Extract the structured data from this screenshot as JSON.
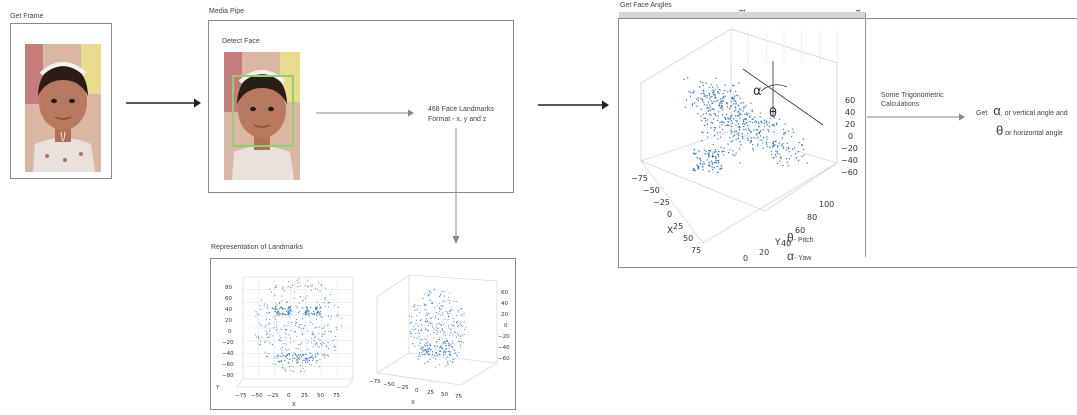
{
  "frame": {
    "title": "Get Frame"
  },
  "mediapipe": {
    "title": "Media Pipe",
    "detect_label": "Detect Face",
    "landmarks_line1": "468 Face Landmarks",
    "landmarks_line2": "Format - x, y and z"
  },
  "representation": {
    "title": "Representation of Landmarks",
    "left_y_ticks": [
      "80",
      "60",
      "40",
      "20",
      "0",
      "−20",
      "−40",
      "−60",
      "−80"
    ],
    "left_x_ticks": [
      "−75",
      "−50",
      "−25",
      "0",
      "25",
      "50",
      "75"
    ],
    "left_x_label": "X",
    "left_y_label": "Y",
    "right_z_ticks": [
      "60",
      "40",
      "20",
      "0",
      "−20",
      "−40",
      "−60"
    ],
    "right_x_ticks": [
      "−75",
      "−50",
      "−25",
      "0",
      "25",
      "50",
      "75"
    ],
    "right_x_label": "X"
  },
  "angles": {
    "title": "Get Face Angles",
    "z_ticks": [
      "60",
      "40",
      "20",
      "0",
      "−20",
      "−40",
      "−60"
    ],
    "x_ticks": [
      "−75",
      "−50",
      "−25",
      "0",
      "25",
      "50",
      "75"
    ],
    "y_ticks": [
      "100",
      "80",
      "60",
      "40",
      "20",
      "0"
    ],
    "x_label": "X",
    "y_label": "Y",
    "pitch_symbol": "θ",
    "pitch_label": "- Pitch",
    "yaw_symbol": "α",
    "yaw_label": "- Yaw",
    "calc_line1": "Some Trigonometric",
    "calc_line2": "Calculations",
    "get_prefix": "Get",
    "alpha_symbol": "α",
    "vertical_text": ", or vertical angle and",
    "theta_symbol": "θ",
    "horizontal_text": "or horizontal angle"
  },
  "colors": {
    "landmark_dot": "#3b78b8",
    "box_border": "#8a8a8a",
    "face_box": "#8fd16a",
    "arrow": "#222222"
  }
}
